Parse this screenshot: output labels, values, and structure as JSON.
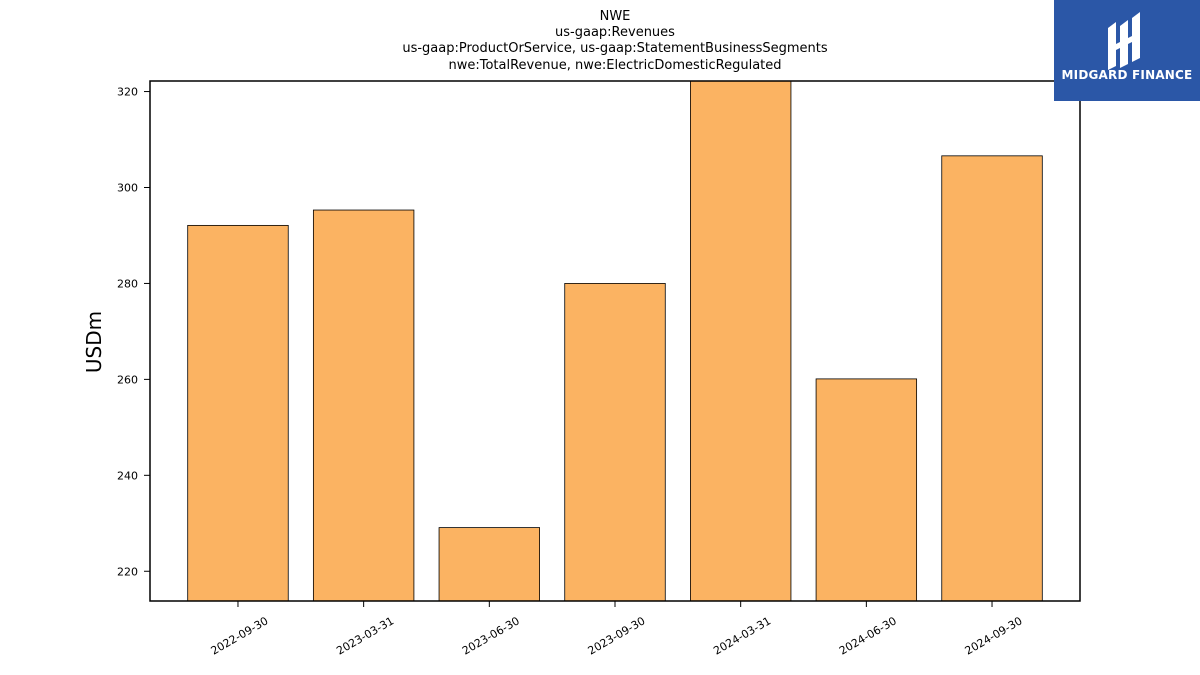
{
  "chart_data": {
    "type": "bar",
    "title_lines": [
      "NWE",
      "us-gaap:Revenues",
      "us-gaap:ProductOrService, us-gaap:StatementBusinessSegments",
      "nwe:TotalRevenue, nwe:ElectricDomesticRegulated"
    ],
    "xlabel": "",
    "ylabel": "USDm",
    "categories": [
      "2022-09-30",
      "2023-03-31",
      "2023-06-30",
      "2023-09-30",
      "2024-03-31",
      "2024-06-30",
      "2024-09-30"
    ],
    "values": [
      292.1,
      295.3,
      229.1,
      280.0,
      323.5,
      260.1,
      306.6
    ],
    "ylim": [
      213.8,
      322.2
    ],
    "yticks": [
      220,
      240,
      260,
      280,
      300,
      320
    ],
    "bar_color": "#fbb362",
    "edge_color": "#000000",
    "grid": false,
    "legend": "none"
  },
  "logo": {
    "text": "MIDGARD FINANCE",
    "background": "#2b57a7"
  }
}
